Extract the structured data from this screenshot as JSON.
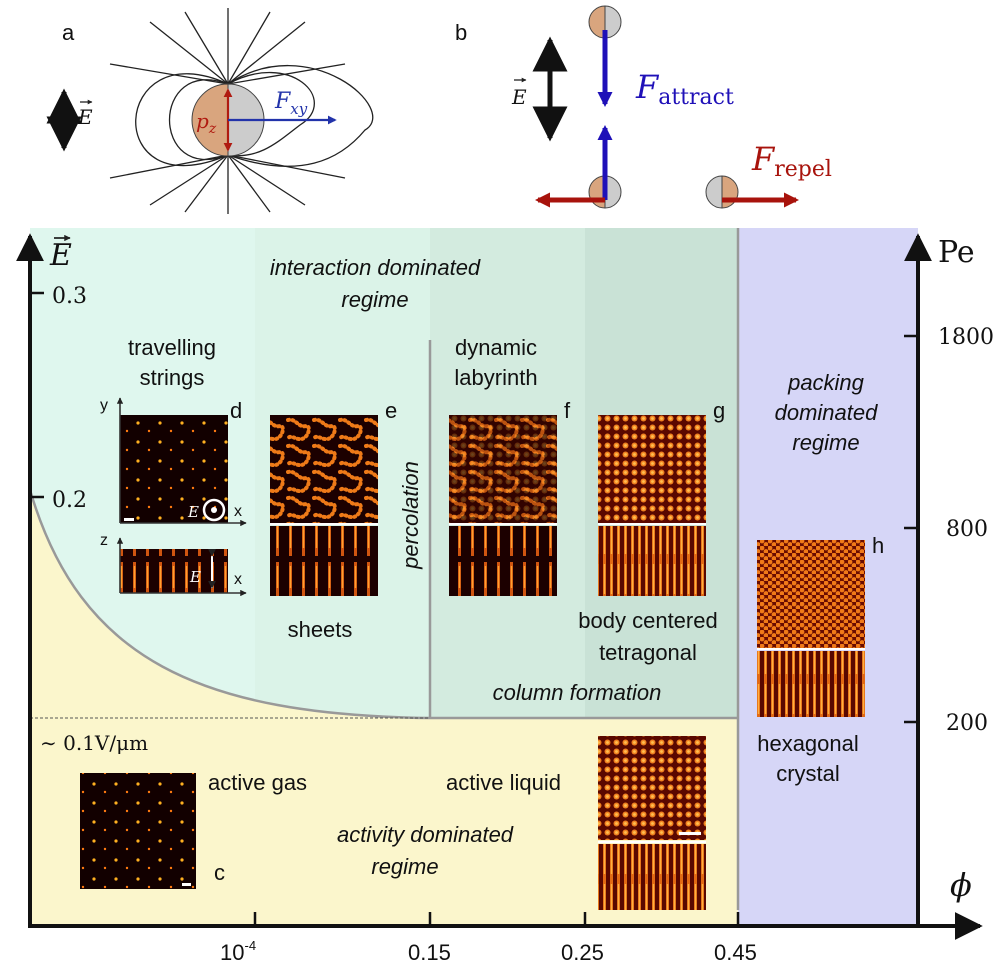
{
  "panels": {
    "a": "a",
    "b": "b",
    "c": "c",
    "d": "d",
    "e": "e",
    "f": "f",
    "g": "g",
    "h": "h"
  },
  "dipole": {
    "field_symbol": "E",
    "dipole_symbol": "p",
    "dipole_sub": "z",
    "force_symbol": "F",
    "force_sub": "xy"
  },
  "forces": {
    "field_symbol": "E",
    "attract_symbol": "F",
    "attract_sub": "attract",
    "repel_symbol": "F",
    "repel_sub": "repel"
  },
  "axes": {
    "y_left_symbol": "E",
    "y_right_label": "Pe",
    "x_symbol": "ϕ",
    "left_ticks": [
      "0.3",
      "0.2"
    ],
    "right_ticks": [
      "1800",
      "800",
      "200"
    ],
    "x_ticks": [
      "10",
      "-4",
      "0.15",
      "0.25",
      "0.45"
    ],
    "threshold": "∼ 0.1V/μm"
  },
  "regimes": {
    "interaction": [
      "interaction dominated",
      "regime"
    ],
    "packing": [
      "packing",
      "dominated",
      "regime"
    ],
    "activity": [
      "activity dominated",
      "regime"
    ],
    "percolation": "percolation",
    "column": "column formation"
  },
  "phases": {
    "strings": [
      "travelling",
      "strings"
    ],
    "sheets": "sheets",
    "labyrinth": [
      "dynamic",
      "labyrinth"
    ],
    "bct": [
      "body centered",
      "tetragonal"
    ],
    "hex": [
      "hexagonal",
      "crystal"
    ],
    "gas": "active gas",
    "liquid": "active liquid"
  },
  "inset_axes": {
    "y": "y",
    "x": "x",
    "z": "z",
    "E": "E"
  },
  "colors": {
    "mint": "#dff7ee",
    "mint_mid": "#d6efe3",
    "mint_dark": "#c8e2d4",
    "yellow": "#fbf6cc",
    "lavender": "#d6d6f7",
    "blue_arrow": "#1f10b8",
    "red_arrow": "#a8130c",
    "particle_orange": "#d9a57e",
    "particle_gray": "#cccccc"
  }
}
